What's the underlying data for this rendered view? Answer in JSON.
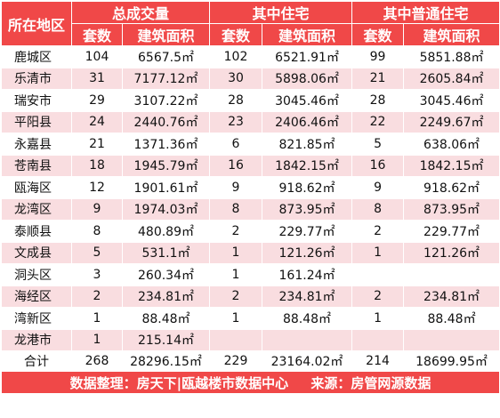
{
  "table": {
    "headers": {
      "district": "所在地区",
      "group_total": "总成交量",
      "group_residential": "其中住宅",
      "group_ordinary": "其中普通住宅",
      "units": "套数",
      "area": "建筑面积"
    },
    "rows": [
      {
        "district": "鹿城区",
        "t_units": "104",
        "t_area": "6567.5㎡",
        "r_units": "102",
        "r_area": "6521.91㎡",
        "o_units": "99",
        "o_area": "5851.88㎡"
      },
      {
        "district": "乐清市",
        "t_units": "31",
        "t_area": "7177.12㎡",
        "r_units": "30",
        "r_area": "5898.06㎡",
        "o_units": "21",
        "o_area": "2605.84㎡"
      },
      {
        "district": "瑞安市",
        "t_units": "29",
        "t_area": "3107.22㎡",
        "r_units": "28",
        "r_area": "3045.46㎡",
        "o_units": "28",
        "o_area": "3045.46㎡"
      },
      {
        "district": "平阳县",
        "t_units": "24",
        "t_area": "2440.76㎡",
        "r_units": "23",
        "r_area": "2406.46㎡",
        "o_units": "22",
        "o_area": "2249.67㎡"
      },
      {
        "district": "永嘉县",
        "t_units": "21",
        "t_area": "1371.36㎡",
        "r_units": "6",
        "r_area": "821.85㎡",
        "o_units": "5",
        "o_area": "638.06㎡"
      },
      {
        "district": "苍南县",
        "t_units": "18",
        "t_area": "1945.79㎡",
        "r_units": "16",
        "r_area": "1842.15㎡",
        "o_units": "16",
        "o_area": "1842.15㎡"
      },
      {
        "district": "瓯海区",
        "t_units": "12",
        "t_area": "1901.61㎡",
        "r_units": "9",
        "r_area": "918.62㎡",
        "o_units": "9",
        "o_area": "918.62㎡"
      },
      {
        "district": "龙湾区",
        "t_units": "9",
        "t_area": "1974.03㎡",
        "r_units": "8",
        "r_area": "873.95㎡",
        "o_units": "8",
        "o_area": "873.95㎡"
      },
      {
        "district": "泰顺县",
        "t_units": "8",
        "t_area": "480.89㎡",
        "r_units": "2",
        "r_area": "229.77㎡",
        "o_units": "2",
        "o_area": "229.77㎡"
      },
      {
        "district": "文成县",
        "t_units": "5",
        "t_area": "531.1㎡",
        "r_units": "1",
        "r_area": "121.26㎡",
        "o_units": "1",
        "o_area": "121.26㎡"
      },
      {
        "district": "洞头区",
        "t_units": "3",
        "t_area": "260.34㎡",
        "r_units": "1",
        "r_area": "161.24㎡",
        "o_units": "",
        "o_area": ""
      },
      {
        "district": "海经区",
        "t_units": "2",
        "t_area": "234.81㎡",
        "r_units": "2",
        "r_area": "234.81㎡",
        "o_units": "2",
        "o_area": "234.81㎡"
      },
      {
        "district": "湾新区",
        "t_units": "1",
        "t_area": "88.48㎡",
        "r_units": "1",
        "r_area": "88.48㎡",
        "o_units": "1",
        "o_area": "88.48㎡"
      },
      {
        "district": "龙港市",
        "t_units": "1",
        "t_area": "215.14㎡",
        "r_units": "",
        "r_area": "",
        "o_units": "",
        "o_area": ""
      }
    ],
    "total": {
      "district": "合计",
      "t_units": "268",
      "t_area": "28296.15㎡",
      "r_units": "229",
      "r_area": "23164.02㎡",
      "o_units": "214",
      "o_area": "18699.95㎡"
    }
  },
  "footer": {
    "compiler": "数据整理：房天下|瓯越楼市数据中心",
    "source": "来源：房管网源数据"
  },
  "colors": {
    "header_red": "#f04848",
    "row_pink": "#f9dde0",
    "row_white": "#ffffff"
  }
}
